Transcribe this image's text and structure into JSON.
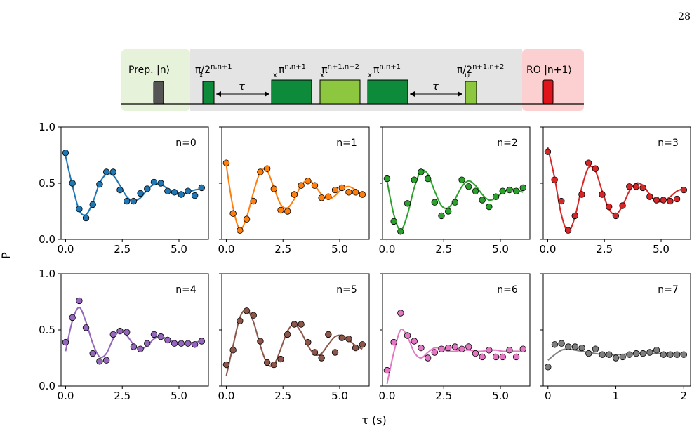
{
  "page": {
    "number": "28"
  },
  "pulse_sequence": {
    "prep_label": "Prep. |n⟩",
    "pulse1_base": "π/2",
    "pulse1_sub": "x",
    "pulse1_sup": "n,n+1",
    "tau1": "τ",
    "pulse2_base": "π",
    "pulse2_sub": "x",
    "pulse2_sup": "n,n+1",
    "pulse3_base": "π",
    "pulse3_sub": "x",
    "pulse3_sup": "n+1,n+2",
    "pulse4_base": "π",
    "pulse4_sub": "x",
    "pulse4_sup": "n,n+1",
    "tau2": "τ",
    "pulse5_base": "π/2",
    "pulse5_sub": "ψ",
    "pulse5_sup": "n+1,n+2",
    "readout_label": "RO |n+1⟩",
    "colors": {
      "prep_bg": "#e6f2d9",
      "seq_bg": "#e4e4e4",
      "ro_bg": "#fcd0d0",
      "dark_green": "#0e8a3b",
      "light_green": "#8dc63f",
      "prep_pulse": "#555555",
      "ro_pulse": "#e0141b"
    }
  },
  "figure": {
    "ylabel": "P",
    "xlabel": "τ (s)"
  },
  "chart_data": [
    {
      "type": "scatter",
      "label": "n=0",
      "color": "#1f77b4",
      "xlim": [
        -0.2,
        6.3
      ],
      "ylim": [
        0,
        1
      ],
      "xticks": [
        0,
        2.5,
        5
      ],
      "xticklabels": [
        "0.0",
        "2.5",
        "5.0"
      ],
      "yticks": [
        0,
        0.5,
        1
      ],
      "yticklabels": [
        "0.0",
        "0.5",
        "1.0"
      ],
      "x": [
        0.0,
        0.3,
        0.6,
        0.9,
        1.2,
        1.5,
        1.8,
        2.1,
        2.4,
        2.7,
        3.0,
        3.3,
        3.6,
        3.9,
        4.2,
        4.5,
        4.8,
        5.1,
        5.4,
        5.7,
        6.0
      ],
      "y": [
        0.77,
        0.5,
        0.27,
        0.19,
        0.31,
        0.49,
        0.6,
        0.6,
        0.44,
        0.34,
        0.34,
        0.41,
        0.45,
        0.51,
        0.5,
        0.43,
        0.42,
        0.4,
        0.43,
        0.39,
        0.46
      ],
      "fit": {
        "x": [
          0.0,
          0.3,
          0.6,
          0.9,
          1.2,
          1.5,
          1.8,
          2.1,
          2.4,
          2.7,
          3.0,
          3.3,
          3.6,
          3.9,
          4.2,
          4.5,
          4.8,
          5.1,
          5.4,
          5.7,
          6.0
        ],
        "y": [
          0.74,
          0.48,
          0.26,
          0.22,
          0.33,
          0.5,
          0.58,
          0.57,
          0.48,
          0.38,
          0.34,
          0.37,
          0.44,
          0.49,
          0.49,
          0.45,
          0.41,
          0.4,
          0.42,
          0.44,
          0.45
        ]
      }
    },
    {
      "type": "scatter",
      "label": "n=1",
      "color": "#ff7f0e",
      "xlim": [
        -0.2,
        6.3
      ],
      "ylim": [
        0,
        1
      ],
      "xticks": [
        0,
        2.5,
        5
      ],
      "xticklabels": [
        "0.0",
        "2.5",
        "5.0"
      ],
      "yticks": [
        0,
        0.5,
        1
      ],
      "yticklabels": [
        "",
        "",
        ""
      ],
      "x": [
        0.0,
        0.3,
        0.6,
        0.9,
        1.2,
        1.5,
        1.8,
        2.1,
        2.4,
        2.7,
        3.0,
        3.3,
        3.6,
        3.9,
        4.2,
        4.5,
        4.8,
        5.1,
        5.4,
        5.7,
        6.0
      ],
      "y": [
        0.68,
        0.23,
        0.08,
        0.18,
        0.34,
        0.6,
        0.63,
        0.45,
        0.26,
        0.25,
        0.4,
        0.48,
        0.52,
        0.48,
        0.37,
        0.38,
        0.44,
        0.46,
        0.42,
        0.42,
        0.4
      ],
      "fit": {
        "x": [
          0.0,
          0.3,
          0.6,
          0.9,
          1.2,
          1.5,
          1.8,
          2.1,
          2.4,
          2.7,
          3.0,
          3.3,
          3.6,
          3.9,
          4.2,
          4.5,
          4.8,
          5.1,
          5.4,
          5.7,
          6.0
        ],
        "y": [
          0.66,
          0.28,
          0.09,
          0.2,
          0.42,
          0.6,
          0.61,
          0.46,
          0.31,
          0.28,
          0.36,
          0.48,
          0.53,
          0.48,
          0.4,
          0.36,
          0.39,
          0.45,
          0.47,
          0.44,
          0.4
        ]
      }
    },
    {
      "type": "scatter",
      "label": "n=2",
      "color": "#2ca02c",
      "xlim": [
        -0.2,
        6.3
      ],
      "ylim": [
        0,
        1
      ],
      "xticks": [
        0,
        2.5,
        5
      ],
      "xticklabels": [
        "0.0",
        "2.5",
        "5.0"
      ],
      "yticks": [
        0,
        0.5,
        1
      ],
      "yticklabels": [
        "",
        "",
        ""
      ],
      "x": [
        0.0,
        0.3,
        0.6,
        0.9,
        1.2,
        1.5,
        1.8,
        2.1,
        2.4,
        2.7,
        3.0,
        3.3,
        3.6,
        3.9,
        4.2,
        4.5,
        4.8,
        5.1,
        5.4,
        5.7,
        6.0
      ],
      "y": [
        0.54,
        0.16,
        0.07,
        0.32,
        0.53,
        0.6,
        0.54,
        0.33,
        0.21,
        0.25,
        0.33,
        0.53,
        0.47,
        0.43,
        0.35,
        0.29,
        0.38,
        0.43,
        0.44,
        0.43,
        0.46
      ],
      "fit": {
        "x": [
          0.0,
          0.3,
          0.6,
          0.9,
          1.2,
          1.5,
          1.8,
          2.1,
          2.4,
          2.7,
          3.0,
          3.3,
          3.6,
          3.9,
          4.2,
          4.5,
          4.8,
          5.1,
          5.4,
          5.7,
          6.0
        ],
        "y": [
          0.52,
          0.22,
          0.08,
          0.22,
          0.46,
          0.61,
          0.58,
          0.43,
          0.3,
          0.28,
          0.36,
          0.47,
          0.52,
          0.48,
          0.4,
          0.35,
          0.37,
          0.42,
          0.45,
          0.44,
          0.42
        ]
      }
    },
    {
      "type": "scatter",
      "label": "n=3",
      "color": "#d62728",
      "xlim": [
        -0.2,
        6.3
      ],
      "ylim": [
        0,
        1
      ],
      "xticks": [
        0,
        2.5,
        5
      ],
      "xticklabels": [
        "0.0",
        "2.5",
        "5.0"
      ],
      "yticks": [
        0,
        0.5,
        1
      ],
      "yticklabels": [
        "",
        "",
        ""
      ],
      "x": [
        0.0,
        0.3,
        0.6,
        0.9,
        1.2,
        1.5,
        1.8,
        2.1,
        2.4,
        2.7,
        3.0,
        3.3,
        3.6,
        3.9,
        4.2,
        4.5,
        4.8,
        5.1,
        5.4,
        5.7,
        6.0
      ],
      "y": [
        0.78,
        0.53,
        0.34,
        0.08,
        0.21,
        0.4,
        0.68,
        0.63,
        0.4,
        0.29,
        0.21,
        0.3,
        0.47,
        0.47,
        0.46,
        0.38,
        0.35,
        0.35,
        0.34,
        0.36,
        0.44
      ],
      "fit": {
        "x": [
          0.0,
          0.3,
          0.6,
          0.9,
          1.2,
          1.5,
          1.8,
          2.1,
          2.4,
          2.7,
          3.0,
          3.3,
          3.6,
          3.9,
          4.2,
          4.5,
          4.8,
          5.1,
          5.4,
          5.7,
          6.0
        ],
        "y": [
          0.82,
          0.55,
          0.22,
          0.07,
          0.2,
          0.46,
          0.64,
          0.61,
          0.43,
          0.27,
          0.22,
          0.3,
          0.43,
          0.5,
          0.48,
          0.4,
          0.34,
          0.34,
          0.38,
          0.43,
          0.45
        ]
      }
    },
    {
      "type": "scatter",
      "label": "n=4",
      "color": "#9467bd",
      "xlim": [
        -0.2,
        6.3
      ],
      "ylim": [
        0,
        1
      ],
      "xticks": [
        0,
        2.5,
        5
      ],
      "xticklabels": [
        "0.0",
        "2.5",
        "5.0"
      ],
      "yticks": [
        0,
        0.5,
        1
      ],
      "yticklabels": [
        "0.0",
        "0.5",
        "1.0"
      ],
      "x": [
        0.0,
        0.3,
        0.6,
        0.9,
        1.2,
        1.5,
        1.8,
        2.1,
        2.4,
        2.7,
        3.0,
        3.3,
        3.6,
        3.9,
        4.2,
        4.5,
        4.8,
        5.1,
        5.4,
        5.7,
        6.0
      ],
      "y": [
        0.39,
        0.61,
        0.76,
        0.52,
        0.29,
        0.22,
        0.23,
        0.46,
        0.49,
        0.48,
        0.35,
        0.33,
        0.38,
        0.46,
        0.44,
        0.41,
        0.38,
        0.38,
        0.38,
        0.37,
        0.4
      ],
      "fit": {
        "x": [
          0.0,
          0.3,
          0.6,
          0.9,
          1.2,
          1.5,
          1.8,
          2.1,
          2.4,
          2.7,
          3.0,
          3.3,
          3.6,
          3.9,
          4.2,
          4.5,
          4.8,
          5.1,
          5.4,
          5.7,
          6.0
        ],
        "y": [
          0.31,
          0.58,
          0.7,
          0.57,
          0.38,
          0.26,
          0.29,
          0.42,
          0.49,
          0.45,
          0.37,
          0.33,
          0.36,
          0.42,
          0.44,
          0.42,
          0.39,
          0.37,
          0.38,
          0.39,
          0.4
        ]
      }
    },
    {
      "type": "scatter",
      "label": "n=5",
      "color": "#8c564b",
      "xlim": [
        -0.2,
        6.3
      ],
      "ylim": [
        0,
        1
      ],
      "xticks": [
        0,
        2.5,
        5
      ],
      "xticklabels": [
        "0.0",
        "2.5",
        "5.0"
      ],
      "yticks": [
        0,
        0.5,
        1
      ],
      "yticklabels": [
        "",
        "",
        ""
      ],
      "x": [
        0.0,
        0.3,
        0.6,
        0.9,
        1.2,
        1.5,
        1.8,
        2.1,
        2.4,
        2.7,
        3.0,
        3.3,
        3.6,
        3.9,
        4.2,
        4.5,
        4.8,
        5.1,
        5.4,
        5.7,
        6.0
      ],
      "y": [
        0.19,
        0.32,
        0.58,
        0.67,
        0.63,
        0.4,
        0.21,
        0.19,
        0.24,
        0.46,
        0.55,
        0.55,
        0.39,
        0.3,
        0.25,
        0.46,
        0.3,
        0.43,
        0.42,
        0.34,
        0.37
      ],
      "fit": {
        "x": [
          0.0,
          0.3,
          0.6,
          0.9,
          1.2,
          1.5,
          1.8,
          2.1,
          2.4,
          2.7,
          3.0,
          3.3,
          3.6,
          3.9,
          4.2,
          4.5,
          4.8,
          5.1,
          5.4,
          5.7,
          6.0
        ],
        "y": [
          0.09,
          0.36,
          0.61,
          0.68,
          0.57,
          0.36,
          0.2,
          0.19,
          0.33,
          0.49,
          0.55,
          0.48,
          0.36,
          0.28,
          0.29,
          0.37,
          0.44,
          0.45,
          0.41,
          0.36,
          0.33
        ]
      }
    },
    {
      "type": "scatter",
      "label": "n=6",
      "color": "#e377c2",
      "xlim": [
        -0.2,
        6.3
      ],
      "ylim": [
        0,
        1
      ],
      "xticks": [
        0,
        2.5,
        5
      ],
      "xticklabels": [
        "0.0",
        "2.5",
        "5.0"
      ],
      "yticks": [
        0,
        0.5,
        1
      ],
      "yticklabels": [
        "",
        "",
        ""
      ],
      "x": [
        0.0,
        0.3,
        0.6,
        0.9,
        1.2,
        1.5,
        1.8,
        2.1,
        2.4,
        2.7,
        3.0,
        3.3,
        3.6,
        3.9,
        4.2,
        4.5,
        4.8,
        5.1,
        5.4,
        5.7,
        6.0
      ],
      "y": [
        0.14,
        0.39,
        0.65,
        0.45,
        0.4,
        0.34,
        0.25,
        0.3,
        0.33,
        0.34,
        0.35,
        0.33,
        0.35,
        0.29,
        0.26,
        0.32,
        0.26,
        0.26,
        0.32,
        0.26,
        0.33
      ],
      "fit": {
        "x": [
          0.0,
          0.3,
          0.6,
          0.9,
          1.2,
          1.5,
          1.8,
          2.1,
          2.4,
          2.7,
          3.0,
          3.3,
          3.6,
          3.9,
          4.2,
          4.5,
          4.8,
          5.1,
          5.4,
          5.7,
          6.0
        ],
        "y": [
          0.02,
          0.3,
          0.5,
          0.44,
          0.3,
          0.25,
          0.3,
          0.34,
          0.33,
          0.31,
          0.31,
          0.32,
          0.32,
          0.31,
          0.31,
          0.32,
          0.32,
          0.31,
          0.31,
          0.31,
          0.31
        ]
      }
    },
    {
      "type": "scatter",
      "label": "n=7",
      "color": "#7f7f7f",
      "xlim": [
        -0.07,
        2.1
      ],
      "ylim": [
        0,
        1
      ],
      "xticks": [
        0,
        1,
        2
      ],
      "xticklabels": [
        "0",
        "1",
        "2"
      ],
      "yticks": [
        0,
        0.5,
        1
      ],
      "yticklabels": [
        "",
        "",
        ""
      ],
      "x": [
        0.0,
        0.1,
        0.2,
        0.3,
        0.4,
        0.5,
        0.6,
        0.7,
        0.8,
        0.9,
        1.0,
        1.1,
        1.2,
        1.3,
        1.4,
        1.5,
        1.6,
        1.7,
        1.8,
        1.9,
        2.0
      ],
      "y": [
        0.17,
        0.37,
        0.38,
        0.35,
        0.35,
        0.34,
        0.29,
        0.33,
        0.28,
        0.28,
        0.25,
        0.26,
        0.28,
        0.29,
        0.29,
        0.3,
        0.32,
        0.28,
        0.28,
        0.28,
        0.28
      ],
      "fit": {
        "x": [
          0.0,
          0.1,
          0.2,
          0.3,
          0.4,
          0.5,
          0.6,
          0.7,
          0.8,
          0.9,
          1.0,
          1.1,
          1.2,
          1.3,
          1.4,
          1.5,
          1.6,
          1.7,
          1.8,
          1.9,
          2.0
        ],
        "y": [
          0.23,
          0.28,
          0.32,
          0.33,
          0.32,
          0.31,
          0.3,
          0.29,
          0.28,
          0.28,
          0.28,
          0.28,
          0.29,
          0.29,
          0.29,
          0.29,
          0.29,
          0.29,
          0.29,
          0.29,
          0.29
        ]
      }
    }
  ]
}
